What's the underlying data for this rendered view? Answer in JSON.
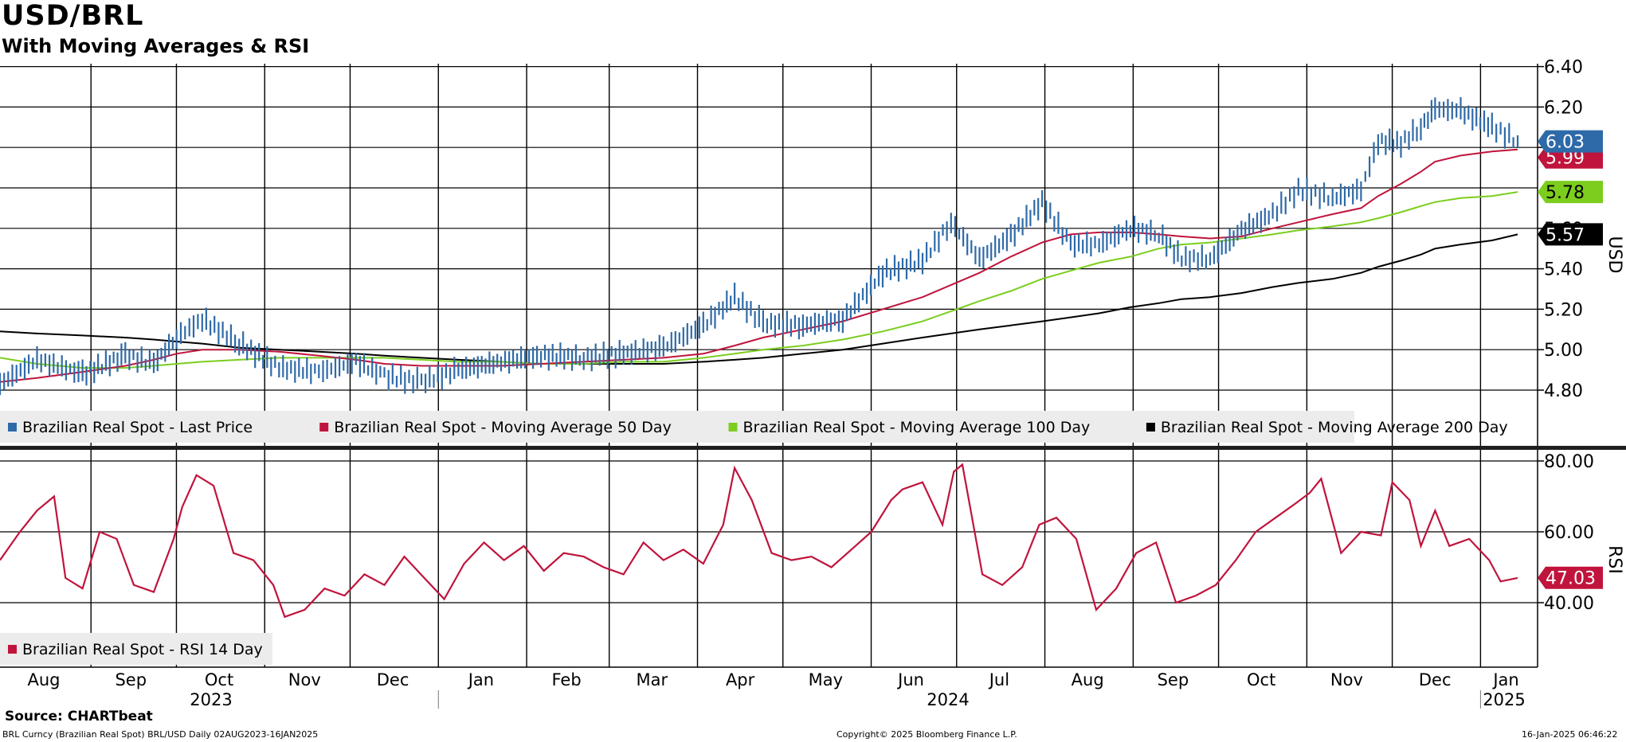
{
  "title": "USD/BRL",
  "subtitle": "With Moving Averages & RSI",
  "source": "Source: CHARTbeat",
  "footer": {
    "left": "BRL Curncy (Brazilian Real Spot) BRL/USD  Daily 02AUG2023-16JAN2025",
    "center": "Copyright© 2025 Bloomberg Finance L.P.",
    "right": "16-Jan-2025 06:46:22"
  },
  "colors": {
    "price": "#2e6aa8",
    "ma50": "#c0143c",
    "ma100": "#7ccd1e",
    "ma200": "#000000",
    "rsi": "#c0143c"
  },
  "chart_data": [
    {
      "type": "line",
      "panel": "price",
      "ylabel": "USD",
      "ylim": [
        4.64,
        6.45
      ],
      "yticks": [
        "4.80",
        "5.00",
        "5.20",
        "5.40",
        "5.60",
        "6.00",
        "6.20",
        "6.40"
      ],
      "grid": true,
      "legend_position": "bottom-left",
      "x_months": [
        "Aug",
        "Sep",
        "Oct",
        "Nov",
        "Dec",
        "Jan",
        "Feb",
        "Mar",
        "Apr",
        "May",
        "Jun",
        "Jul",
        "Aug",
        "Sep",
        "Oct",
        "Nov",
        "Dec",
        "Jan"
      ],
      "x_years": [
        "2023",
        "2024",
        "2025"
      ],
      "x_dates": [
        "2023-08-02",
        "2023-08-15",
        "2023-08-31",
        "2023-09-15",
        "2023-09-25",
        "2023-10-03",
        "2023-10-12",
        "2023-10-25",
        "2023-11-08",
        "2023-11-22",
        "2023-12-05",
        "2023-12-15",
        "2023-12-28",
        "2024-01-10",
        "2024-01-25",
        "2024-02-08",
        "2024-02-23",
        "2024-03-08",
        "2024-03-22",
        "2024-04-05",
        "2024-04-16",
        "2024-04-26",
        "2024-05-10",
        "2024-05-24",
        "2024-06-07",
        "2024-06-21",
        "2024-07-01",
        "2024-07-11",
        "2024-07-22",
        "2024-08-02",
        "2024-08-12",
        "2024-08-22",
        "2024-09-02",
        "2024-09-12",
        "2024-09-20",
        "2024-09-30",
        "2024-10-11",
        "2024-10-22",
        "2024-10-31",
        "2024-11-12",
        "2024-11-22",
        "2024-11-28",
        "2024-12-06",
        "2024-12-13",
        "2024-12-18",
        "2024-12-27",
        "2025-01-07",
        "2025-01-16"
      ],
      "series": [
        {
          "name": "Brazilian Real Spot - Last Price",
          "values": [
            4.83,
            4.95,
            4.88,
            4.97,
            4.93,
            5.06,
            5.15,
            5.03,
            4.91,
            4.89,
            4.94,
            4.87,
            4.84,
            4.9,
            4.94,
            4.97,
            4.96,
            4.98,
            5.01,
            5.12,
            5.26,
            5.13,
            5.12,
            5.15,
            5.38,
            5.44,
            5.63,
            5.45,
            5.56,
            5.73,
            5.52,
            5.52,
            5.6,
            5.57,
            5.45,
            5.45,
            5.59,
            5.67,
            5.79,
            5.75,
            5.79,
            6.03,
            6.02,
            6.1,
            6.19,
            6.18,
            6.1,
            6.03
          ],
          "last_label": "6.03"
        },
        {
          "name": "Brazilian Real Spot - Moving Average 50 Day",
          "values": [
            4.84,
            4.86,
            4.89,
            4.92,
            4.95,
            4.98,
            5.0,
            5.0,
            4.99,
            4.97,
            4.95,
            4.93,
            4.92,
            4.92,
            4.92,
            4.93,
            4.94,
            4.95,
            4.96,
            4.98,
            5.02,
            5.06,
            5.1,
            5.14,
            5.2,
            5.26,
            5.32,
            5.38,
            5.46,
            5.53,
            5.57,
            5.58,
            5.58,
            5.57,
            5.56,
            5.55,
            5.56,
            5.6,
            5.63,
            5.67,
            5.7,
            5.76,
            5.82,
            5.88,
            5.93,
            5.96,
            5.98,
            5.99
          ],
          "last_label": "5.99"
        },
        {
          "name": "Brazilian Real Spot - Moving Average 100 Day",
          "values": [
            4.96,
            4.93,
            4.91,
            4.91,
            4.92,
            4.93,
            4.94,
            4.95,
            4.96,
            4.96,
            4.96,
            4.96,
            4.95,
            4.94,
            4.94,
            4.93,
            4.93,
            4.94,
            4.94,
            4.96,
            4.98,
            5.0,
            5.02,
            5.05,
            5.09,
            5.14,
            5.19,
            5.24,
            5.29,
            5.35,
            5.39,
            5.43,
            5.46,
            5.5,
            5.52,
            5.53,
            5.55,
            5.57,
            5.59,
            5.61,
            5.63,
            5.65,
            5.68,
            5.71,
            5.73,
            5.75,
            5.76,
            5.78
          ],
          "last_label": "5.78"
        },
        {
          "name": "Brazilian Real Spot - Moving Average 200 Day",
          "values": [
            5.09,
            5.08,
            5.07,
            5.06,
            5.05,
            5.04,
            5.03,
            5.01,
            5.0,
            4.99,
            4.98,
            4.97,
            4.96,
            4.95,
            4.94,
            4.93,
            4.93,
            4.93,
            4.93,
            4.94,
            4.95,
            4.96,
            4.98,
            5.0,
            5.03,
            5.06,
            5.08,
            5.1,
            5.12,
            5.14,
            5.16,
            5.18,
            5.21,
            5.23,
            5.25,
            5.26,
            5.28,
            5.31,
            5.33,
            5.35,
            5.38,
            5.41,
            5.44,
            5.47,
            5.5,
            5.52,
            5.54,
            5.57
          ],
          "last_label": "5.57"
        }
      ]
    },
    {
      "type": "line",
      "panel": "rsi",
      "ylabel": "RSI",
      "ylim": [
        19,
        81
      ],
      "yticks": [
        "40.00",
        "60.00",
        "80.00"
      ],
      "grid": true,
      "legend_position": "bottom-left",
      "x_dates": [
        "2023-08-02",
        "2023-08-09",
        "2023-08-15",
        "2023-08-21",
        "2023-08-25",
        "2023-08-31",
        "2023-09-06",
        "2023-09-12",
        "2023-09-18",
        "2023-09-25",
        "2023-10-02",
        "2023-10-05",
        "2023-10-10",
        "2023-10-16",
        "2023-10-23",
        "2023-10-30",
        "2023-11-06",
        "2023-11-10",
        "2023-11-17",
        "2023-11-24",
        "2023-12-01",
        "2023-12-08",
        "2023-12-15",
        "2023-12-22",
        "2023-12-29",
        "2024-01-05",
        "2024-01-12",
        "2024-01-19",
        "2024-01-26",
        "2024-02-02",
        "2024-02-09",
        "2024-02-16",
        "2024-02-23",
        "2024-03-01",
        "2024-03-08",
        "2024-03-15",
        "2024-03-22",
        "2024-03-29",
        "2024-04-05",
        "2024-04-12",
        "2024-04-16",
        "2024-04-22",
        "2024-04-29",
        "2024-05-06",
        "2024-05-13",
        "2024-05-20",
        "2024-05-27",
        "2024-06-03",
        "2024-06-10",
        "2024-06-14",
        "2024-06-21",
        "2024-06-28",
        "2024-07-02",
        "2024-07-05",
        "2024-07-12",
        "2024-07-19",
        "2024-07-26",
        "2024-08-01",
        "2024-08-07",
        "2024-08-14",
        "2024-08-21",
        "2024-08-28",
        "2024-09-04",
        "2024-09-11",
        "2024-09-18",
        "2024-09-25",
        "2024-10-02",
        "2024-10-09",
        "2024-10-16",
        "2024-10-23",
        "2024-10-30",
        "2024-11-04",
        "2024-11-08",
        "2024-11-15",
        "2024-11-22",
        "2024-11-29",
        "2024-12-03",
        "2024-12-09",
        "2024-12-13",
        "2024-12-18",
        "2024-12-23",
        "2024-12-30",
        "2025-01-06",
        "2025-01-10",
        "2025-01-16"
      ],
      "series": [
        {
          "name": "Brazilian Real Spot - RSI 14 Day",
          "values": [
            52,
            60,
            66,
            70,
            47,
            44,
            60,
            58,
            45,
            43,
            58,
            67,
            76,
            73,
            54,
            52,
            45,
            36,
            38,
            44,
            42,
            48,
            45,
            53,
            47,
            41,
            51,
            57,
            52,
            56,
            49,
            54,
            53,
            50,
            48,
            57,
            52,
            55,
            51,
            62,
            78,
            69,
            54,
            52,
            53,
            50,
            55,
            60,
            69,
            72,
            74,
            62,
            77,
            79,
            48,
            45,
            50,
            62,
            64,
            58,
            38,
            44,
            54,
            57,
            40,
            42,
            45,
            52,
            60,
            64,
            68,
            71,
            75,
            54,
            60,
            59,
            74,
            69,
            56,
            66,
            56,
            58,
            52,
            46,
            47
          ],
          "last_label": "47.03"
        }
      ]
    }
  ]
}
